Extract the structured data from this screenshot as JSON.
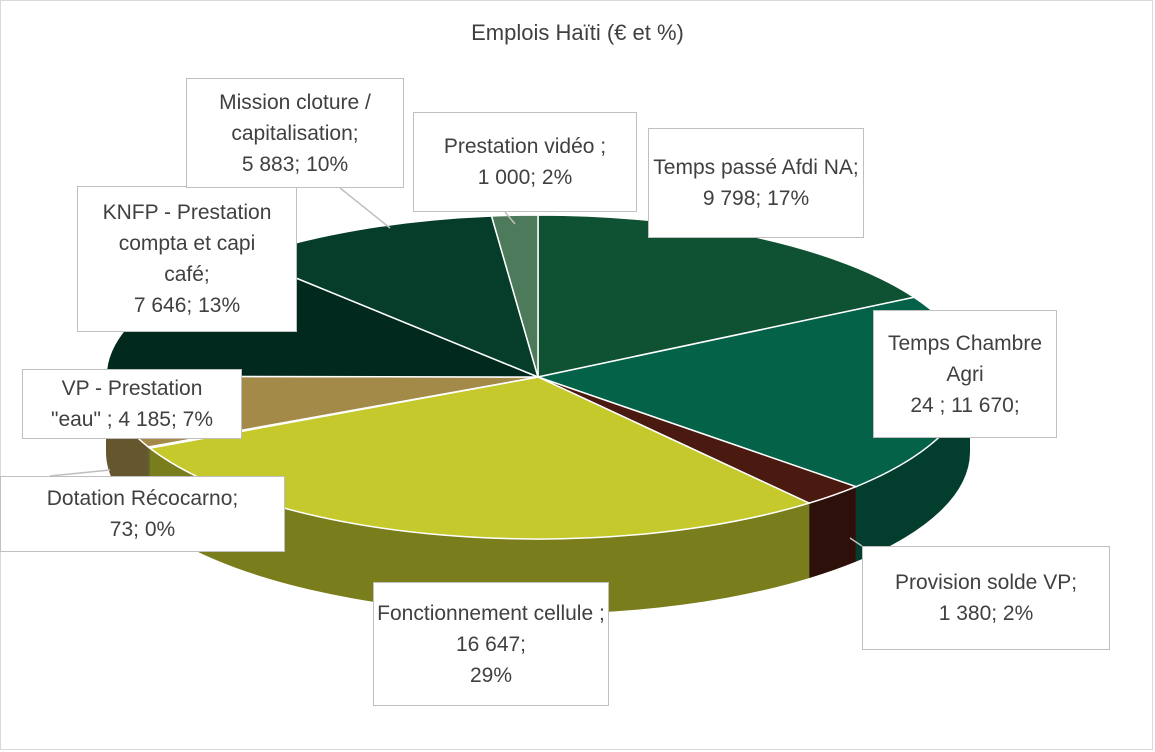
{
  "chart_data": {
    "type": "pie",
    "title": "Emplois Haïti (€ et %)",
    "slices": [
      {
        "label": "Temps passé Afdi NA;\n9 798; 17%",
        "value": 9798,
        "percent": 17,
        "color": "#0f5133"
      },
      {
        "label": "Temps Chambre Agri\n24 ; 11 670;",
        "value": 11670,
        "percent": 20,
        "color": "#036248"
      },
      {
        "label": "Provision solde VP;\n1 380; 2%",
        "value": 1380,
        "percent": 2,
        "color": "#4a1a10"
      },
      {
        "label": "Fonctionnement cellule ; 16 647;\n29%",
        "value": 16647,
        "percent": 29,
        "color": "#c5c92c"
      },
      {
        "label": "Dotation Récocarno;\n73; 0%",
        "value": 73,
        "percent": 0,
        "color": "#7a8a2a"
      },
      {
        "label": "VP - Prestation\n\"eau\" ; 4 185; 7%",
        "value": 4185,
        "percent": 7,
        "color": "#a38a48"
      },
      {
        "label": "KNFP - Prestation\ncompta et capi\ncafé;\n7 646; 13%",
        "value": 7646,
        "percent": 13,
        "color": "#02291e"
      },
      {
        "label": "Mission cloture /\ncapitalisation;\n5 883; 10%",
        "value": 5883,
        "percent": 10,
        "color": "#053d2a"
      },
      {
        "label": "Prestation vidéo ;\n1 000; 2%",
        "value": 1000,
        "percent": 2,
        "color": "#4d7a5a"
      }
    ]
  }
}
